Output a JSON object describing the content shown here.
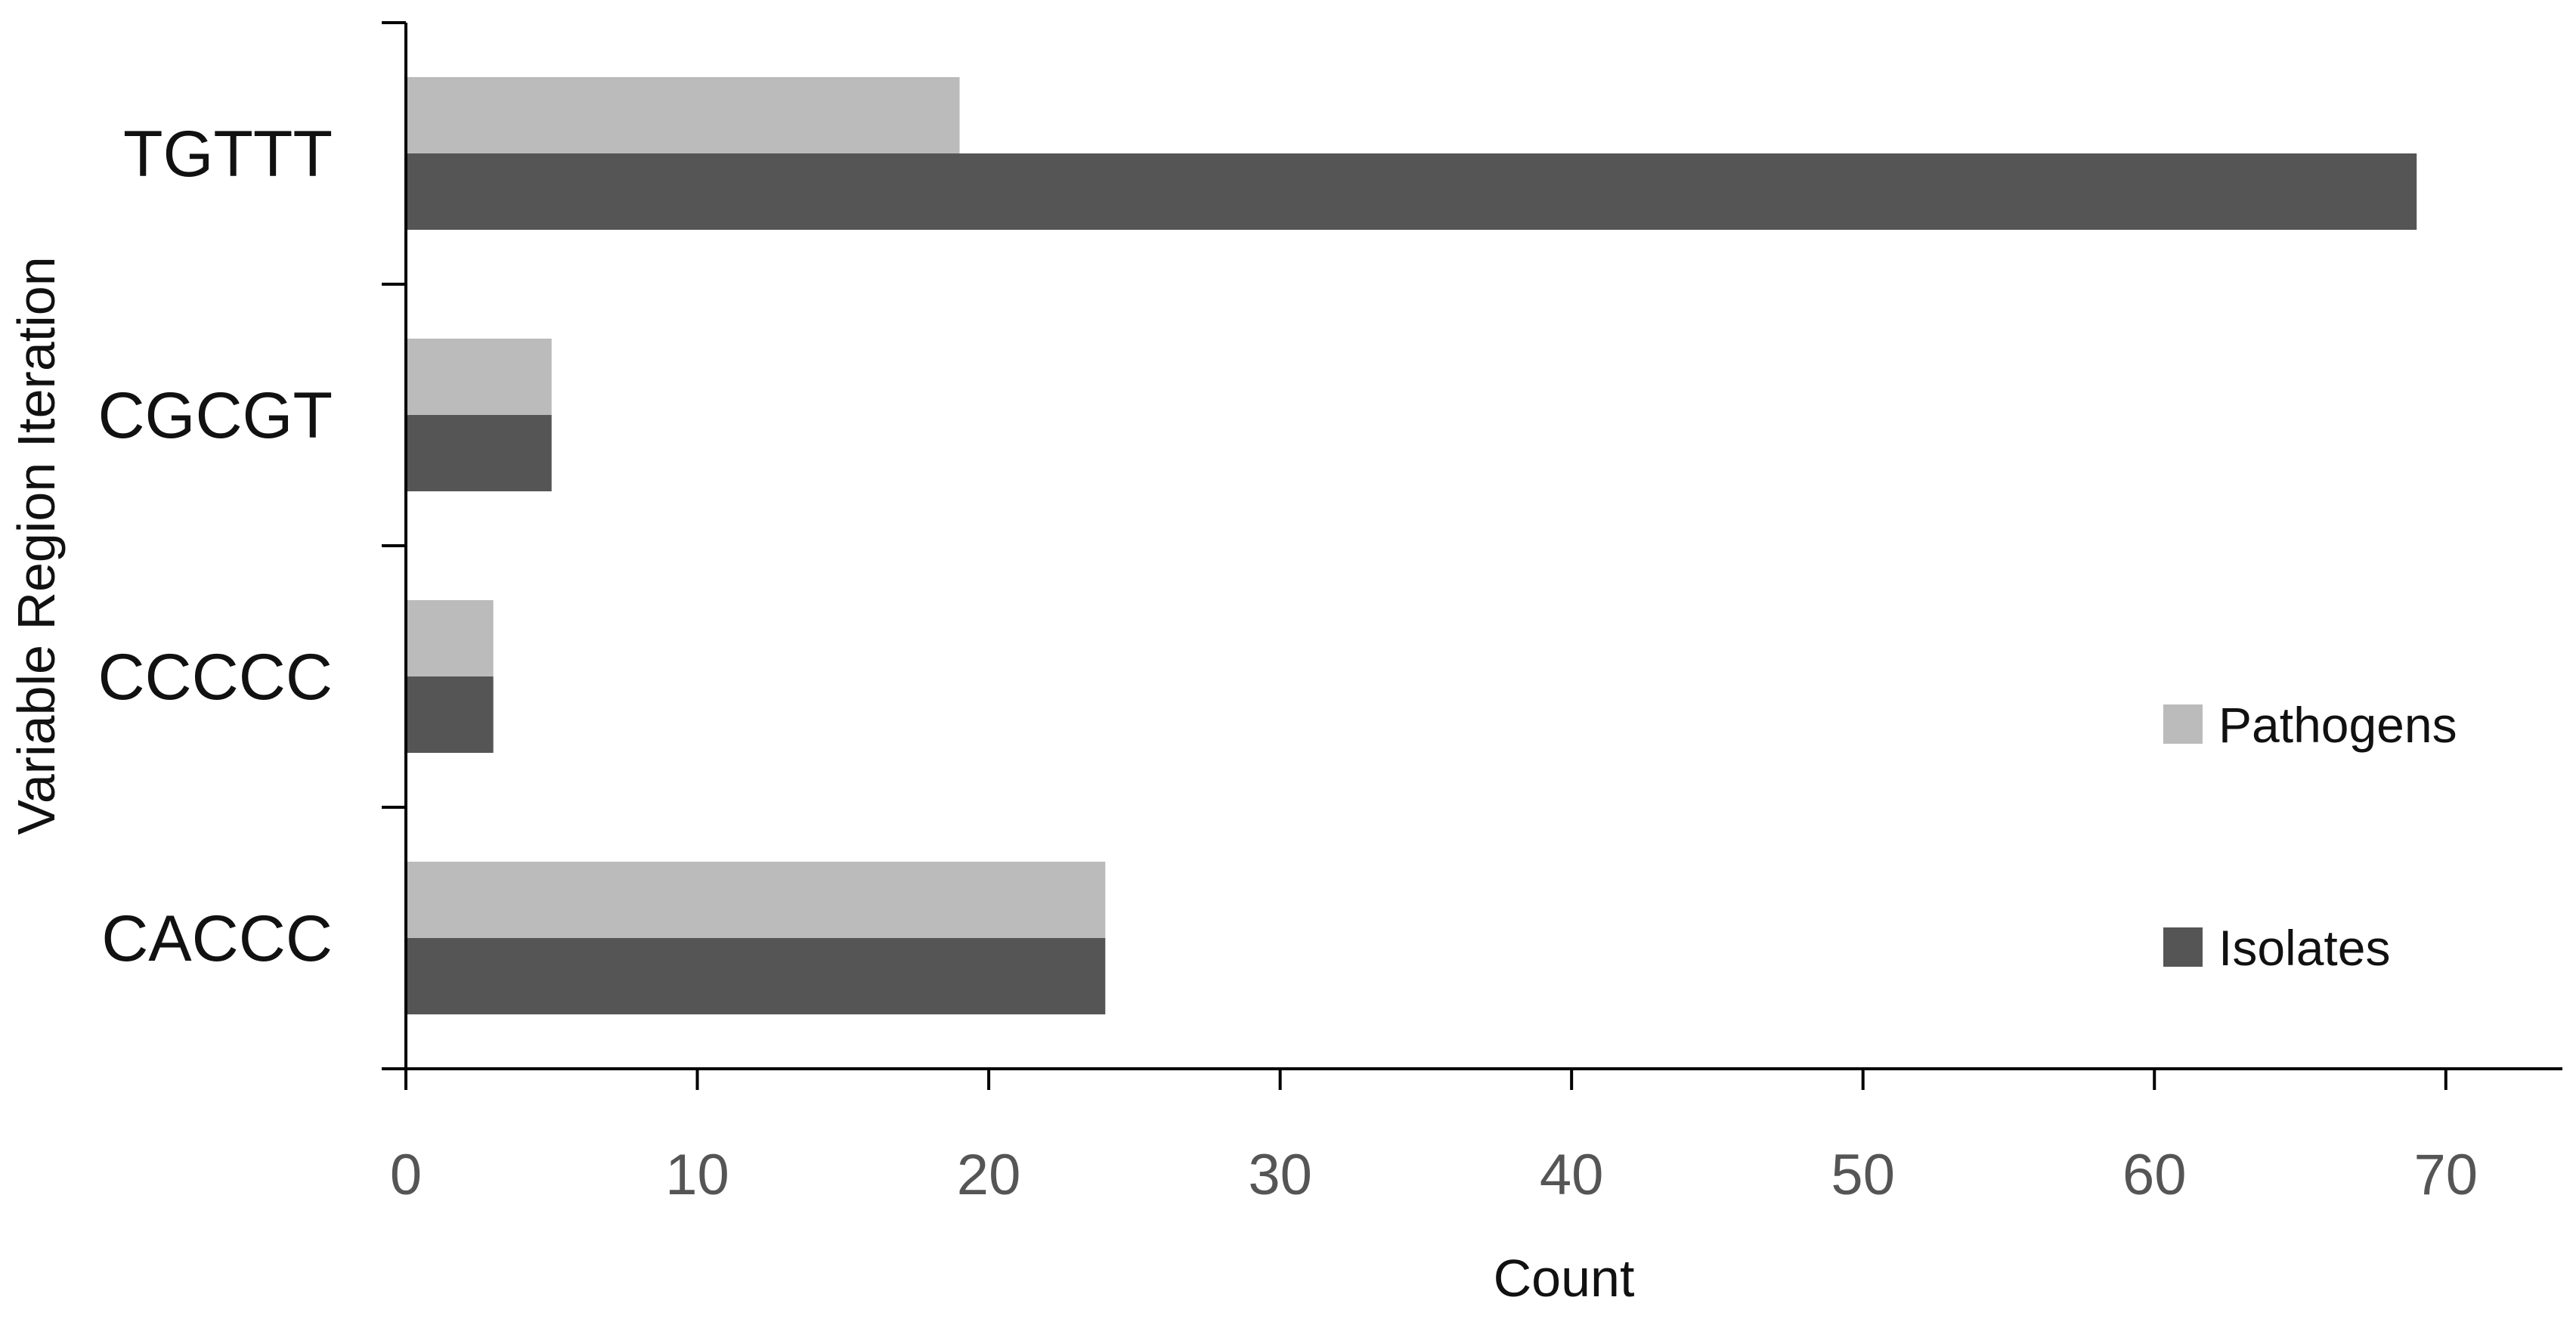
{
  "chart_data": {
    "type": "bar",
    "orientation": "horizontal",
    "categories": [
      "TGTTT",
      "CGCGT",
      "CCCCC",
      "CACCC"
    ],
    "series": [
      {
        "name": "Pathogens",
        "values": [
          19,
          5,
          3,
          24
        ],
        "color": "#bbbbbb"
      },
      {
        "name": "Isolates",
        "values": [
          69,
          5,
          3,
          24
        ],
        "color": "#555555"
      }
    ],
    "xlabel": "Count",
    "ylabel": "Variable Region Iteration",
    "xlim": [
      0,
      74
    ],
    "xticks": [
      0,
      10,
      20,
      30,
      40,
      50,
      60,
      70
    ],
    "grid": false,
    "legend_position": "right"
  }
}
